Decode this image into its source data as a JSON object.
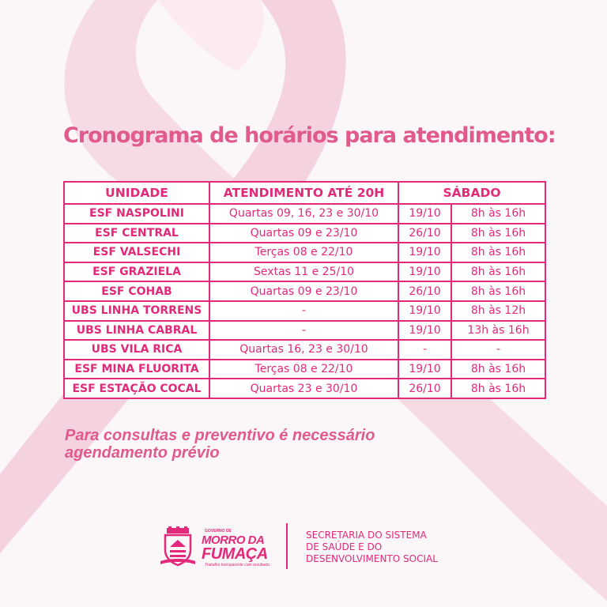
{
  "title": "Cronograma de horários para atendimento:",
  "table": {
    "headers": {
      "unit": "UNIDADE",
      "attendance": "ATENDIMENTO ATÉ 20H",
      "saturday": "SÁBADO"
    },
    "rows": [
      {
        "unit": "ESF NASPOLINI",
        "attendance": "Quartas 09, 16, 23 e 30/10",
        "date": "19/10",
        "hours": "8h às 16h"
      },
      {
        "unit": "ESF CENTRAL",
        "attendance": "Quartas 09 e 23/10",
        "date": "26/10",
        "hours": "8h às 16h"
      },
      {
        "unit": "ESF VALSECHI",
        "attendance": "Terças 08 e 22/10",
        "date": "19/10",
        "hours": "8h às 16h"
      },
      {
        "unit": "ESF GRAZIELA",
        "attendance": "Sextas 11 e 25/10",
        "date": "19/10",
        "hours": "8h às 16h"
      },
      {
        "unit": "ESF COHAB",
        "attendance": "Quartas 09 e 23/10",
        "date": "26/10",
        "hours": "8h às 16h"
      },
      {
        "unit": "UBS LINHA TORRENS",
        "attendance": "-",
        "date": "19/10",
        "hours": "8h às 12h"
      },
      {
        "unit": "UBS LINHA CABRAL",
        "attendance": "-",
        "date": "19/10",
        "hours": "13h às 16h"
      },
      {
        "unit": "UBS VILA RICA",
        "attendance": "Quartas 16, 23 e 30/10",
        "date": "-",
        "hours": "-"
      },
      {
        "unit": "ESF MINA FLUORITA",
        "attendance": "Terças 08 e 22/10",
        "date": "19/10",
        "hours": "8h às 16h"
      },
      {
        "unit": "ESF ESTAÇÃO COCAL",
        "attendance": "Quartas 23 e 30/10",
        "date": "26/10",
        "hours": "8h às 16h"
      }
    ]
  },
  "note": {
    "line1": "Para consultas e preventivo é necessário",
    "line2": "agendamento prévio"
  },
  "logo": {
    "small_text": "GOVERNO DE",
    "line1": "MORRO DA",
    "line2": "FUMAÇA",
    "tagline": "Trabalho transparente com resultado."
  },
  "secretaria": {
    "line1": "SECRETARIA DO SISTEMA",
    "line2": "DE SAÚDE E DO",
    "line3": "DESENVOLVIMENTO SOCIAL"
  },
  "colors": {
    "accent": "#e2297a",
    "title": "#e05a8c",
    "ribbon": "#f3c9d8",
    "background": "#fbf6f8"
  }
}
